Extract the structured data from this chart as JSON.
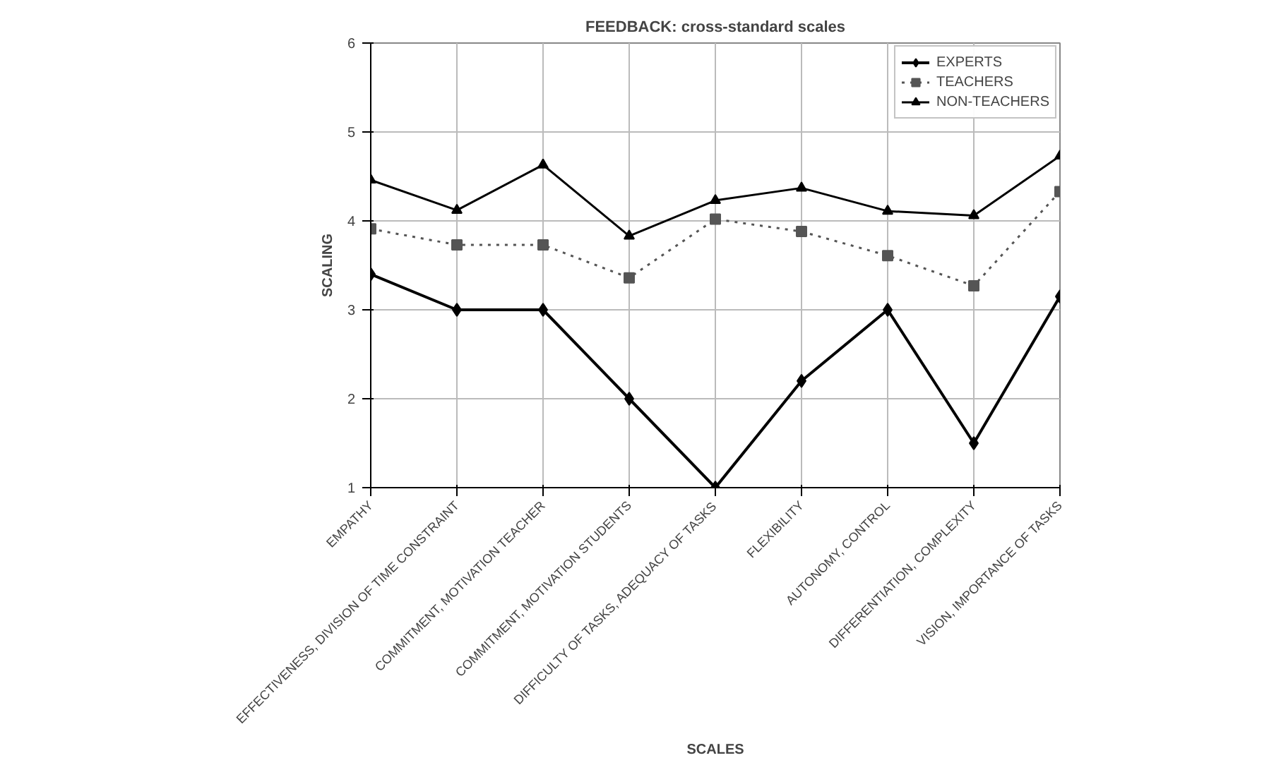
{
  "chart_data": {
    "type": "line",
    "title": "FEEDBACK: cross-standard scales",
    "xlabel": "SCALES",
    "ylabel": "SCALING",
    "categories": [
      "EMPATHY",
      "EFFECTIVENESS, DIVISION OF TIME CONSTRAINT",
      "COMMITMENT, MOTIVATION TEACHER",
      "COMMITMENT, MOTIVATION STUDENTS",
      "DIFFICULTY OF TASKS, ADEQUACY OF TASKS",
      "FLEXIBILITY",
      "AUTONOMY, CONTROL",
      "DIFFERENTIATION, COMPLEXITY",
      "VISION, IMPORTANCE OF TASKS"
    ],
    "series": [
      {
        "name": "EXPERTS",
        "color": "#000000",
        "marker": "diamond",
        "line_style": "solid",
        "values": [
          3.4,
          3.0,
          3.0,
          2.0,
          1.0,
          2.2,
          3.0,
          1.5,
          3.15
        ]
      },
      {
        "name": "TEACHERS",
        "color": "#555555",
        "marker": "square",
        "line_style": "dotted",
        "values": [
          3.91,
          3.73,
          3.73,
          3.36,
          4.02,
          3.88,
          3.61,
          3.27,
          4.33
        ]
      },
      {
        "name": "NON-TEACHERS",
        "color": "#000000",
        "marker": "triangle",
        "line_style": "solid",
        "values": [
          4.46,
          4.12,
          4.63,
          3.83,
          4.23,
          4.37,
          4.11,
          4.06,
          4.73
        ]
      }
    ],
    "ylim": [
      1,
      6
    ],
    "yticks": [
      1,
      2,
      3,
      4,
      5,
      6
    ],
    "grid": true,
    "legend": "top right"
  }
}
